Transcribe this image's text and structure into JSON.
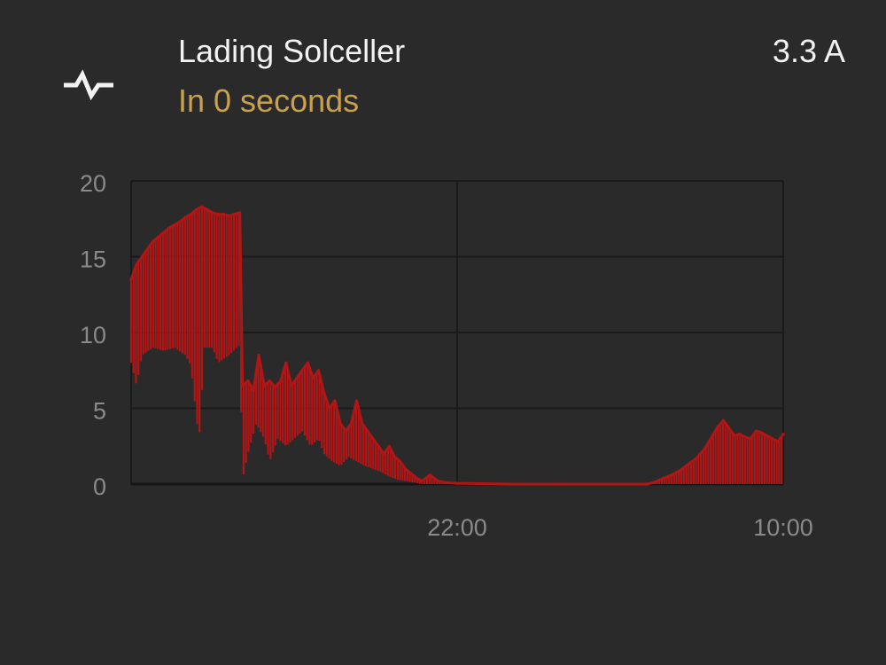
{
  "header": {
    "icon": "pulse-icon",
    "title": "Lading Solceller",
    "subtitle": "In 0 seconds",
    "value": "3.3 A"
  },
  "colors": {
    "background": "#2a2a2a",
    "text": "#f2f2f2",
    "subtitle": "#c9a04c",
    "series": "#b01616",
    "grid": "#1a1a1a",
    "axis_text": "#8a8a8a"
  },
  "chart_data": {
    "type": "line",
    "ylim": [
      0,
      20
    ],
    "xlim": [
      0,
      24
    ],
    "y_ticks": [
      0,
      5,
      10,
      15,
      20
    ],
    "x_ticks": [
      {
        "value": 12,
        "label": "22:00"
      },
      {
        "value": 24,
        "label": "10:00"
      }
    ],
    "grid": true,
    "series": [
      {
        "name": "",
        "color": "#b01616",
        "points": [
          [
            0.0,
            13.5
          ],
          [
            0.2,
            14.5
          ],
          [
            0.4,
            15.0
          ],
          [
            0.6,
            15.5
          ],
          [
            0.8,
            16.0
          ],
          [
            1.0,
            16.3
          ],
          [
            1.2,
            16.6
          ],
          [
            1.4,
            16.9
          ],
          [
            1.6,
            17.1
          ],
          [
            1.8,
            17.3
          ],
          [
            2.0,
            17.6
          ],
          [
            2.2,
            17.8
          ],
          [
            2.4,
            18.1
          ],
          [
            2.6,
            18.3
          ],
          [
            2.8,
            18.1
          ],
          [
            3.0,
            17.9
          ],
          [
            3.2,
            17.8
          ],
          [
            3.4,
            17.8
          ],
          [
            3.6,
            17.7
          ],
          [
            3.8,
            17.8
          ],
          [
            4.0,
            17.9
          ],
          [
            4.1,
            6.5
          ],
          [
            4.3,
            6.8
          ],
          [
            4.5,
            6.2
          ],
          [
            4.7,
            8.5
          ],
          [
            4.9,
            6.5
          ],
          [
            5.1,
            6.8
          ],
          [
            5.3,
            6.4
          ],
          [
            5.5,
            6.8
          ],
          [
            5.7,
            8.0
          ],
          [
            5.9,
            6.5
          ],
          [
            6.1,
            7.0
          ],
          [
            6.3,
            7.5
          ],
          [
            6.5,
            8.0
          ],
          [
            6.7,
            7.0
          ],
          [
            6.9,
            7.5
          ],
          [
            7.1,
            6.0
          ],
          [
            7.3,
            5.0
          ],
          [
            7.5,
            5.5
          ],
          [
            7.7,
            4.0
          ],
          [
            7.9,
            3.5
          ],
          [
            8.1,
            4.0
          ],
          [
            8.3,
            5.5
          ],
          [
            8.5,
            4.0
          ],
          [
            8.7,
            3.5
          ],
          [
            8.9,
            3.0
          ],
          [
            9.1,
            2.5
          ],
          [
            9.3,
            2.0
          ],
          [
            9.5,
            2.5
          ],
          [
            9.7,
            1.8
          ],
          [
            9.9,
            1.5
          ],
          [
            10.1,
            1.0
          ],
          [
            10.3,
            0.7
          ],
          [
            10.5,
            0.4
          ],
          [
            10.7,
            0.2
          ],
          [
            11.0,
            0.6
          ],
          [
            11.3,
            0.2
          ],
          [
            11.6,
            0.1
          ],
          [
            12.0,
            0.05
          ],
          [
            14.0,
            0.0
          ],
          [
            16.0,
            0.0
          ],
          [
            19.0,
            0.0
          ],
          [
            19.3,
            0.15
          ],
          [
            19.6,
            0.4
          ],
          [
            19.9,
            0.6
          ],
          [
            20.2,
            0.9
          ],
          [
            20.5,
            1.3
          ],
          [
            20.8,
            1.7
          ],
          [
            21.1,
            2.3
          ],
          [
            21.4,
            3.2
          ],
          [
            21.6,
            3.8
          ],
          [
            21.8,
            4.2
          ],
          [
            22.0,
            3.7
          ],
          [
            22.2,
            3.2
          ],
          [
            22.4,
            3.3
          ],
          [
            22.6,
            3.1
          ],
          [
            22.8,
            3.0
          ],
          [
            23.0,
            3.5
          ],
          [
            23.2,
            3.4
          ],
          [
            23.4,
            3.2
          ],
          [
            23.6,
            3.0
          ],
          [
            23.8,
            2.8
          ],
          [
            24.0,
            3.3
          ]
        ],
        "min_band": [
          [
            0.0,
            8.0
          ],
          [
            0.2,
            6.5
          ],
          [
            0.4,
            8.5
          ],
          [
            0.8,
            9.0
          ],
          [
            1.2,
            8.8
          ],
          [
            1.6,
            9.0
          ],
          [
            2.0,
            8.5
          ],
          [
            2.2,
            7.8
          ],
          [
            2.5,
            2.8
          ],
          [
            2.7,
            9.0
          ],
          [
            3.0,
            9.0
          ],
          [
            3.2,
            8.0
          ],
          [
            3.6,
            8.5
          ],
          [
            4.0,
            9.2
          ],
          [
            4.1,
            0.3
          ],
          [
            4.3,
            2.0
          ],
          [
            4.6,
            4.0
          ],
          [
            4.9,
            3.0
          ],
          [
            5.1,
            1.5
          ],
          [
            5.4,
            3.0
          ],
          [
            5.7,
            2.5
          ],
          [
            6.0,
            3.0
          ],
          [
            6.3,
            3.5
          ],
          [
            6.6,
            2.5
          ],
          [
            6.9,
            3.0
          ],
          [
            7.1,
            2.0
          ],
          [
            7.4,
            1.5
          ],
          [
            7.7,
            1.2
          ],
          [
            8.0,
            1.8
          ],
          [
            8.3,
            1.5
          ],
          [
            8.6,
            1.2
          ],
          [
            8.9,
            1.0
          ],
          [
            9.2,
            0.8
          ],
          [
            9.5,
            0.5
          ],
          [
            9.8,
            0.3
          ],
          [
            10.1,
            0.2
          ],
          [
            10.4,
            0.1
          ],
          [
            10.7,
            0.0
          ],
          [
            24.0,
            0.0
          ]
        ]
      }
    ]
  }
}
